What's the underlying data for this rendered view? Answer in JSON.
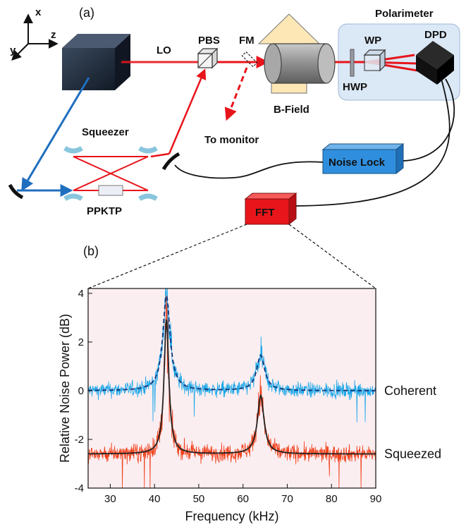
{
  "panel_a": {
    "tag": "(a)",
    "axes": {
      "x": "x",
      "y": "y",
      "z": "z"
    },
    "labels": {
      "lo": "LO",
      "pbs": "PBS",
      "fm": "FM",
      "to_monitor": "To monitor",
      "b_field": "B-Field",
      "polarimeter": "Polarimeter",
      "wp": "WP",
      "hwp": "HWP",
      "dpd": "DPD",
      "squeezer": "Squeezer",
      "ppktp": "PPKTP",
      "noise_lock": "Noise Lock",
      "fft": "FFT"
    },
    "colors": {
      "red_beam": "#e8141b",
      "blue_beam": "#1f6fbf",
      "noise_lock": "#2f8fde",
      "fft": "#e8161b",
      "polarimeter_box": "#dbe8f6",
      "b_field_arrow": "#fde7b5"
    }
  },
  "panel_b": {
    "tag": "(b)",
    "chart_data": {
      "type": "line",
      "xlabel": "Frequency (kHz)",
      "ylabel": "Relative Noise Power (dB)",
      "xlim": [
        25,
        90
      ],
      "ylim": [
        -4,
        4.2
      ],
      "xticks": [
        30,
        40,
        50,
        60,
        70,
        80,
        90
      ],
      "yticks": [
        -4,
        -2,
        0,
        2,
        4
      ],
      "background": "#fbeef1",
      "series": [
        {
          "name": "Coherent",
          "color": "#1aa7e8",
          "fit_color": "#15357a",
          "fit_style": "dashed",
          "baseline": 0.0,
          "peaks": [
            {
              "x": 42.7,
              "height": 3.9,
              "width": 1.0
            },
            {
              "x": 64.0,
              "height": 1.45,
              "width": 1.1
            }
          ],
          "noise": 0.22
        },
        {
          "name": "Squeezed",
          "color": "#f0401a",
          "fit_color": "#222222",
          "fit_style": "solid",
          "baseline": -2.6,
          "peaks": [
            {
              "x": 42.7,
              "height": 5.5,
              "width": 0.65
            },
            {
              "x": 64.0,
              "height": 2.4,
              "width": 0.9
            }
          ],
          "noise": 0.25
        }
      ]
    }
  }
}
